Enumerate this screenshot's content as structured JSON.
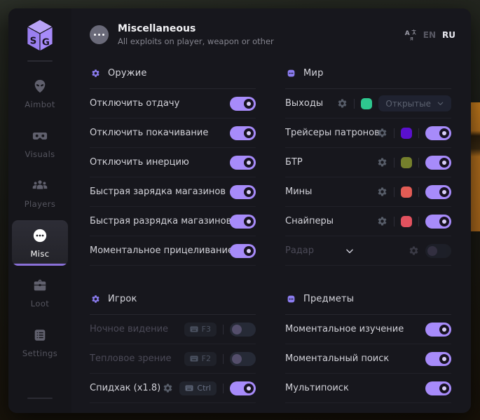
{
  "colors": {
    "accent": "#a78bfa",
    "active_indicator": "#8a70d8",
    "window_bg": "#17171d",
    "sidebar_bg": "#15151a",
    "game_object_orange": "#b4701d"
  },
  "header": {
    "title": "Miscellaneous",
    "subtitle": "All exploits on player, weapon or other",
    "avatar_icon": "ellipsis-icon"
  },
  "language": {
    "icon": "translate-icon",
    "options": [
      "EN",
      "RU"
    ],
    "selected": "RU"
  },
  "sidebar": {
    "logo": "SG",
    "items": [
      {
        "label": "Aimbot",
        "icon": "alien-icon",
        "active": false
      },
      {
        "label": "Visuals",
        "icon": "vr-goggles-icon",
        "active": false
      },
      {
        "label": "Players",
        "icon": "players-icon",
        "active": false
      },
      {
        "label": "Misc",
        "icon": "ellipsis-icon",
        "active": true
      },
      {
        "label": "Loot",
        "icon": "briefcase-icon",
        "active": false
      },
      {
        "label": "Settings",
        "icon": "list-icon",
        "active": false
      }
    ]
  },
  "sections": [
    {
      "title": "Оружие",
      "icon": "gear-icon",
      "column": "left",
      "rows": [
        {
          "label": "Отключить отдачу",
          "toggle": "on"
        },
        {
          "label": "Отключить покачивание",
          "toggle": "on"
        },
        {
          "label": "Отключить инерцию",
          "toggle": "on"
        },
        {
          "label": "Быстрая зарядка магазинов",
          "toggle": "on"
        },
        {
          "label": "Быстрая разрядка магазинов",
          "toggle": "on"
        },
        {
          "label": "Моментальное прицеливание",
          "toggle": "on"
        }
      ]
    },
    {
      "title": "Игрок",
      "icon": "gear-icon",
      "column": "left",
      "rows": [
        {
          "label": "Ночное видение",
          "dimmed": true,
          "key": "F3",
          "toggle": "off"
        },
        {
          "label": "Тепловое зрение",
          "dimmed": true,
          "key": "F2",
          "toggle": "off"
        },
        {
          "label": "Спидхак (x1.8)",
          "gear": true,
          "key": "Ctrl",
          "toggle": "on"
        }
      ]
    },
    {
      "title": "Мир",
      "icon": "dots-icon",
      "column": "right",
      "rows": [
        {
          "label": "Выходы",
          "gear": true,
          "swatch": "#2ec78e",
          "dropdown": "Открытые"
        },
        {
          "label": "Трейсеры патронов",
          "gear": true,
          "swatch": "#5a10ce",
          "toggle": "on"
        },
        {
          "label": "БТР",
          "gear": true,
          "swatch": "#75802c",
          "toggle": "on"
        },
        {
          "label": "Мины",
          "gear": true,
          "swatch": "#e25c55",
          "toggle": "on"
        },
        {
          "label": "Снайперы",
          "gear": true,
          "swatch": "#e2525f",
          "toggle": "on"
        },
        {
          "label": "Радар",
          "dimmed": true,
          "chevron": true,
          "gear": true,
          "gear_dim": true,
          "toggle": "off",
          "toggle_dim": true
        }
      ]
    },
    {
      "title": "Предметы",
      "icon": "dots-icon",
      "column": "right",
      "rows": [
        {
          "label": "Моментальное изучение",
          "toggle": "on"
        },
        {
          "label": "Моментальный поиск",
          "toggle": "on"
        },
        {
          "label": "Мультипоиск",
          "toggle": "on"
        }
      ]
    }
  ]
}
